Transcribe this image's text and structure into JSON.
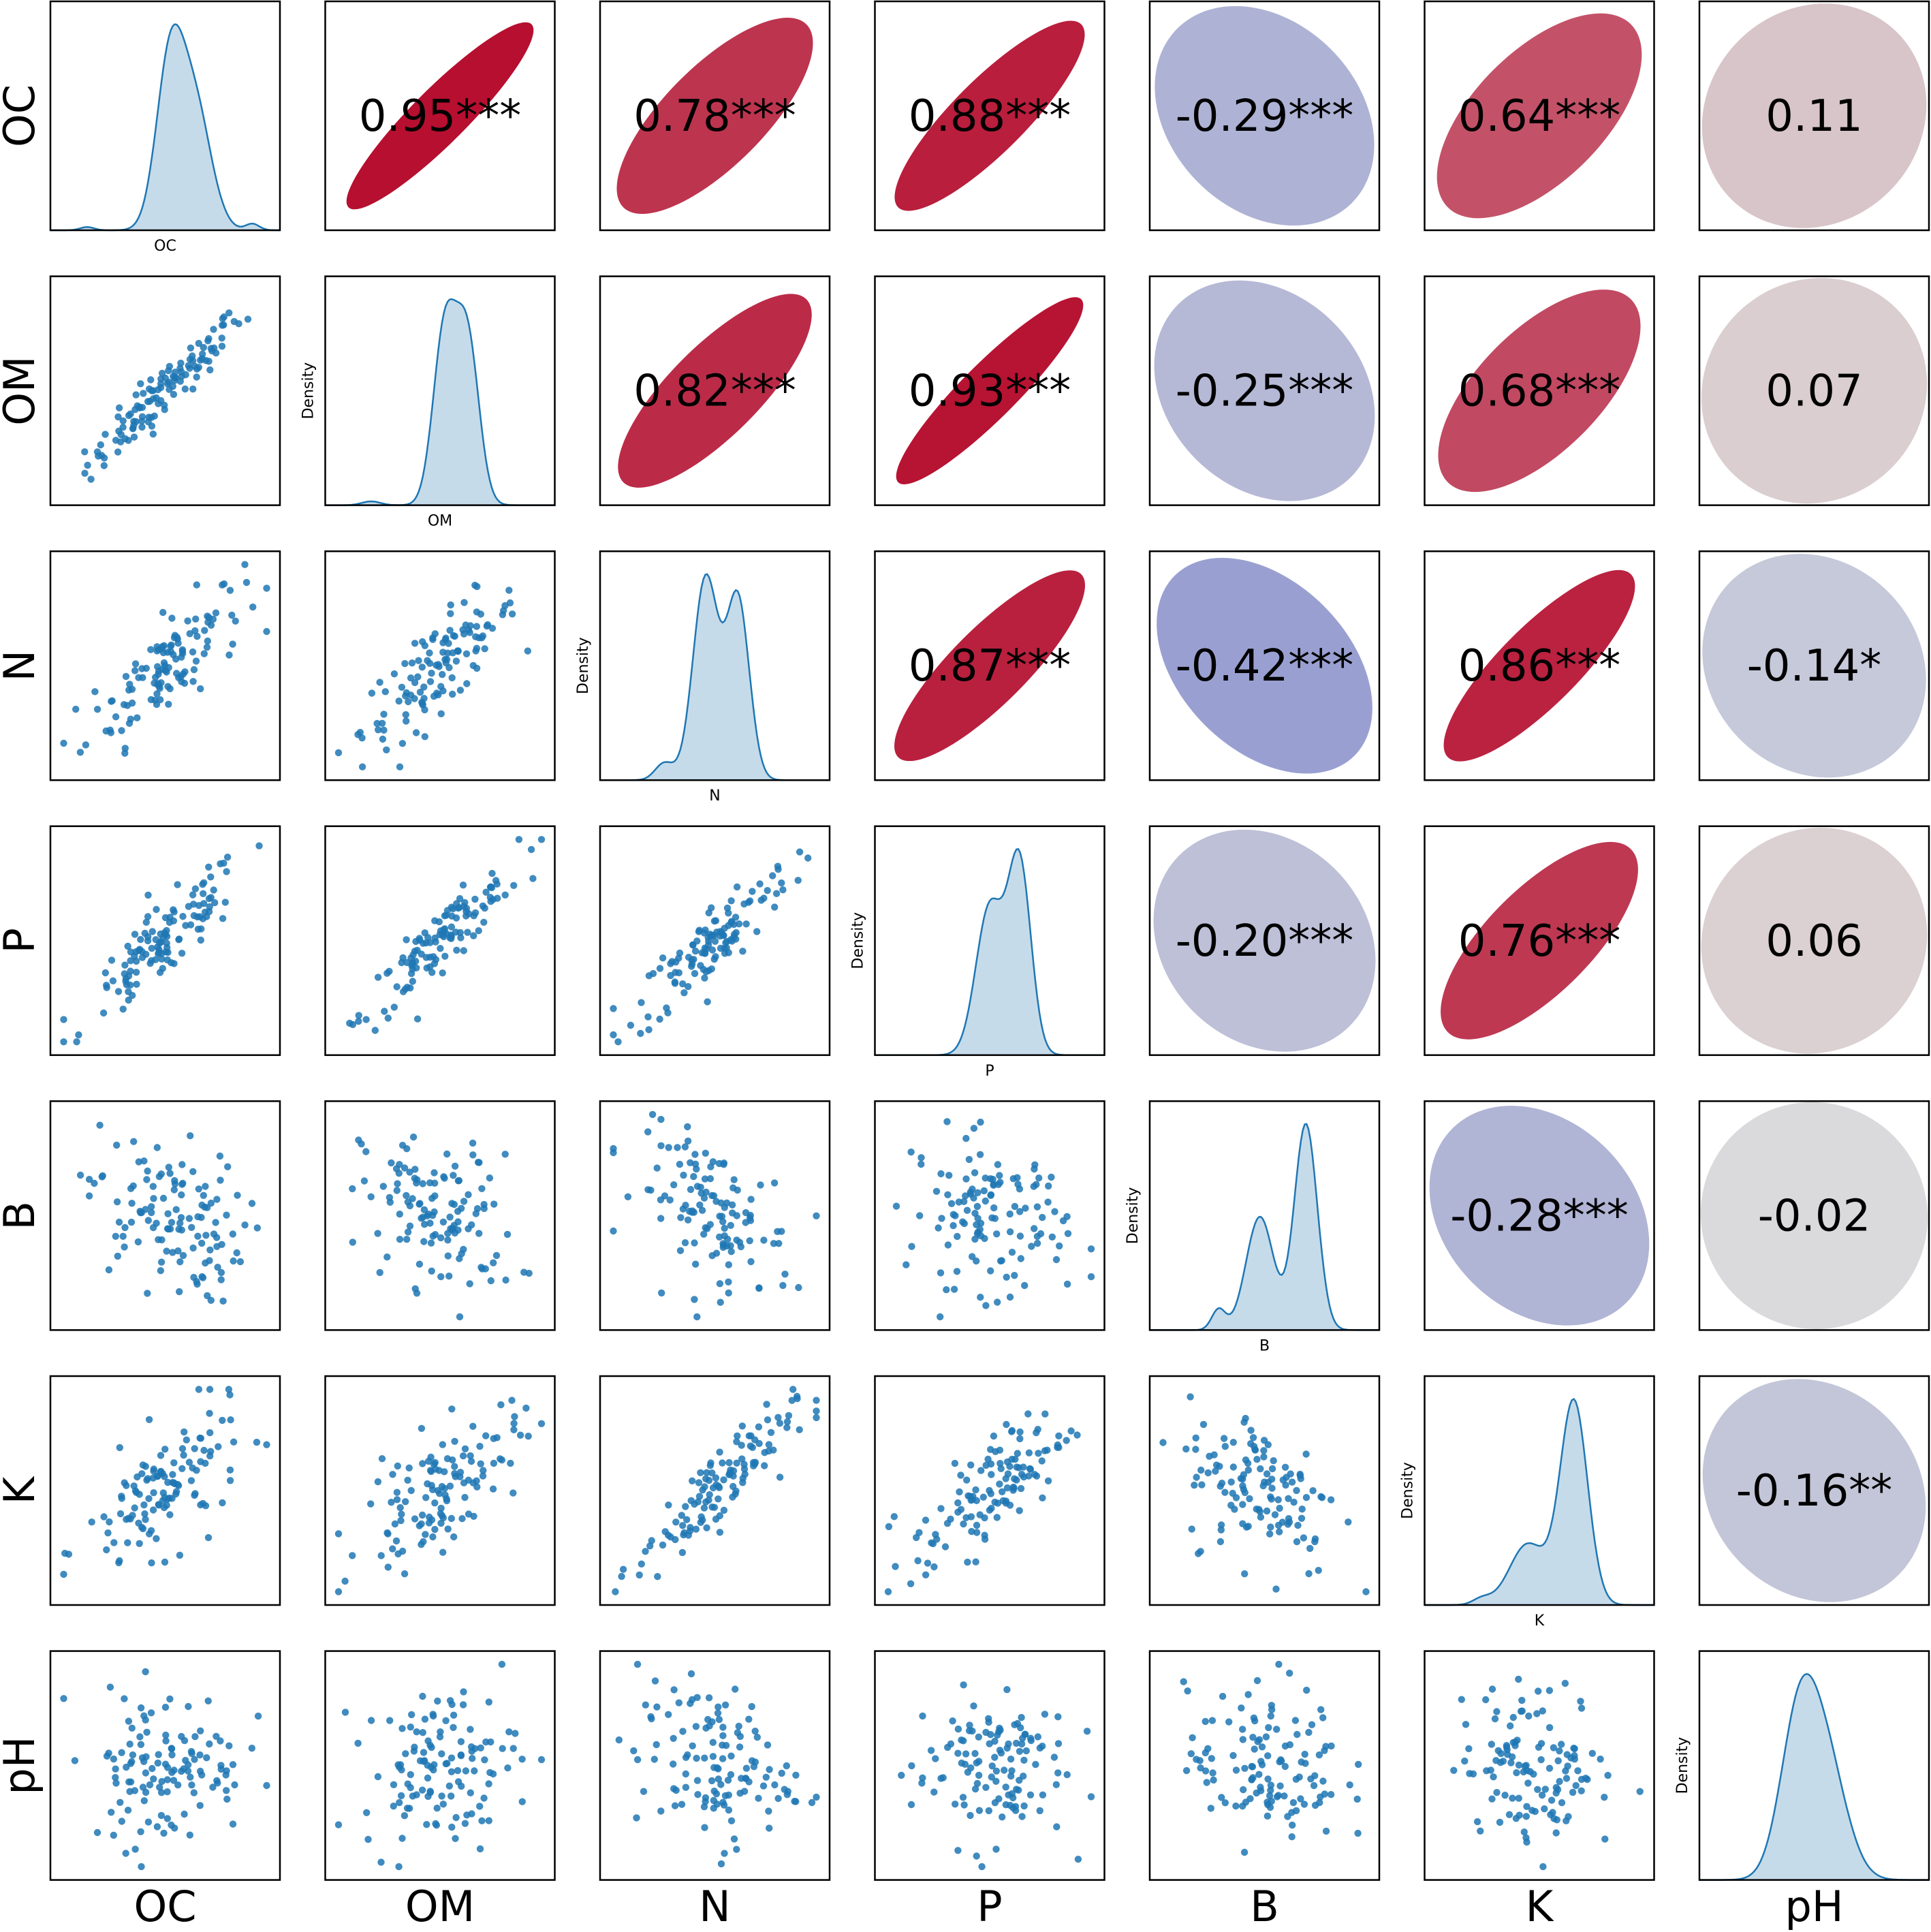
{
  "chart_data": {
    "type": "pairplot",
    "variables": [
      "OC",
      "OM",
      "N",
      "P",
      "B",
      "K",
      "pH"
    ],
    "density_label": "Density",
    "diagonal": "kde",
    "lower": "scatter",
    "upper": "correlation-ellipse",
    "correlations": [
      {
        "row": "OC",
        "col": "OM",
        "r": 0.95,
        "label": "0.95***"
      },
      {
        "row": "OC",
        "col": "N",
        "r": 0.78,
        "label": "0.78***"
      },
      {
        "row": "OC",
        "col": "P",
        "r": 0.88,
        "label": "0.88***"
      },
      {
        "row": "OC",
        "col": "B",
        "r": -0.29,
        "label": "-0.29***"
      },
      {
        "row": "OC",
        "col": "K",
        "r": 0.64,
        "label": "0.64***"
      },
      {
        "row": "OC",
        "col": "pH",
        "r": 0.11,
        "label": "0.11"
      },
      {
        "row": "OM",
        "col": "N",
        "r": 0.82,
        "label": "0.82***"
      },
      {
        "row": "OM",
        "col": "P",
        "r": 0.93,
        "label": "0.93***"
      },
      {
        "row": "OM",
        "col": "B",
        "r": -0.25,
        "label": "-0.25***"
      },
      {
        "row": "OM",
        "col": "K",
        "r": 0.68,
        "label": "0.68***"
      },
      {
        "row": "OM",
        "col": "pH",
        "r": 0.07,
        "label": "0.07"
      },
      {
        "row": "N",
        "col": "P",
        "r": 0.87,
        "label": "0.87***"
      },
      {
        "row": "N",
        "col": "B",
        "r": -0.42,
        "label": "-0.42***"
      },
      {
        "row": "N",
        "col": "K",
        "r": 0.86,
        "label": "0.86***"
      },
      {
        "row": "N",
        "col": "pH",
        "r": -0.14,
        "label": "-0.14*"
      },
      {
        "row": "P",
        "col": "B",
        "r": -0.2,
        "label": "-0.20***"
      },
      {
        "row": "P",
        "col": "K",
        "r": 0.76,
        "label": "0.76***"
      },
      {
        "row": "P",
        "col": "pH",
        "r": 0.06,
        "label": "0.06"
      },
      {
        "row": "B",
        "col": "K",
        "r": -0.28,
        "label": "-0.28***"
      },
      {
        "row": "B",
        "col": "pH",
        "r": -0.02,
        "label": "-0.02"
      },
      {
        "row": "K",
        "col": "pH",
        "r": -0.16,
        "label": "-0.16**"
      }
    ],
    "color_scale": {
      "negative": "#3b4cc0",
      "neutral": "#dddddd",
      "positive": "#b40426"
    },
    "point_color": "#1f77b4",
    "kde_fill": "#c6dbea",
    "kde_line": "#1f77b4"
  }
}
